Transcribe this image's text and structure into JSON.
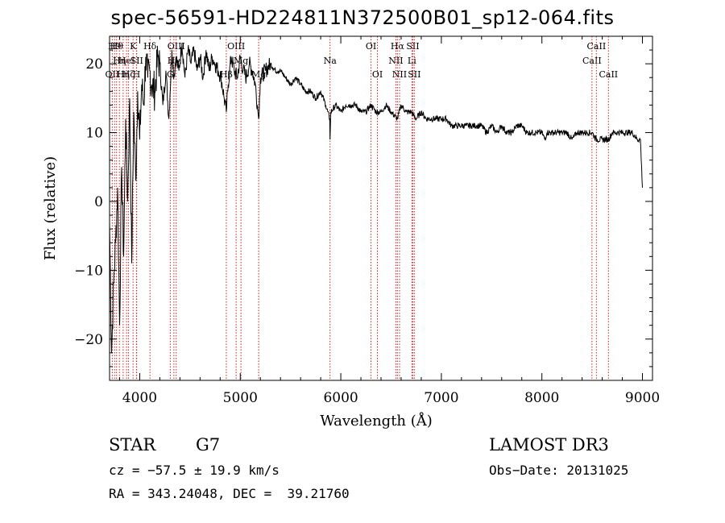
{
  "chart_data": {
    "type": "line",
    "title": "spec-56591-HD224811N372500B01_sp12-064.fits",
    "xlabel": "Wavelength (Å)",
    "ylabel": "Flux (relative)",
    "xlim": [
      3700,
      9100
    ],
    "ylim": [
      -26,
      24
    ],
    "x_ticks": [
      4000,
      5000,
      6000,
      7000,
      8000,
      9000
    ],
    "y_ticks": [
      -20,
      -10,
      0,
      10,
      20
    ],
    "grid": false,
    "series": [
      {
        "name": "spectrum",
        "x": [
          3700,
          3720,
          3740,
          3760,
          3780,
          3800,
          3820,
          3840,
          3860,
          3880,
          3900,
          3920,
          3940,
          3960,
          3980,
          4000,
          4020,
          4040,
          4060,
          4080,
          4100,
          4120,
          4150,
          4180,
          4200,
          4230,
          4260,
          4290,
          4320,
          4340,
          4360,
          4390,
          4420,
          4450,
          4480,
          4510,
          4540,
          4570,
          4600,
          4630,
          4660,
          4690,
          4720,
          4750,
          4780,
          4810,
          4840,
          4861,
          4880,
          4910,
          4940,
          4970,
          5000,
          5030,
          5060,
          5090,
          5120,
          5150,
          5170,
          5183,
          5200,
          5250,
          5300,
          5350,
          5400,
          5450,
          5500,
          5550,
          5600,
          5650,
          5700,
          5750,
          5800,
          5850,
          5890,
          5893,
          5900,
          5950,
          6000,
          6050,
          6100,
          6150,
          6200,
          6250,
          6300,
          6350,
          6400,
          6450,
          6500,
          6563,
          6600,
          6650,
          6700,
          6750,
          6800,
          6850,
          6900,
          6950,
          7000,
          7050,
          7100,
          7150,
          7200,
          7250,
          7300,
          7350,
          7400,
          7450,
          7500,
          7550,
          7600,
          7650,
          7700,
          7750,
          7800,
          7850,
          7900,
          7950,
          8000,
          8030,
          8050,
          8100,
          8150,
          8200,
          8250,
          8300,
          8350,
          8400,
          8450,
          8500,
          8542,
          8600,
          8662,
          8700,
          8750,
          8800,
          8850,
          8900,
          8950,
          8980,
          9000
        ],
        "y": [
          -3,
          -22,
          -12,
          -6,
          2,
          -18,
          5,
          -8,
          12,
          0,
          15,
          -9,
          13,
          3,
          16,
          9,
          17,
          14,
          21,
          18,
          19,
          17,
          16,
          21,
          20,
          14,
          19,
          12,
          22,
          18,
          21,
          19,
          23,
          18,
          22,
          20,
          22,
          19,
          21,
          18,
          22,
          19,
          21,
          20,
          19,
          18,
          15,
          13,
          17,
          21,
          19,
          18,
          21,
          19,
          18,
          20,
          19,
          17,
          14,
          12,
          18,
          19,
          20,
          19,
          19,
          18,
          17,
          18,
          17,
          16,
          16,
          15,
          16,
          14,
          12,
          9,
          13,
          14,
          13,
          14,
          14,
          14,
          13,
          13,
          14,
          13,
          13,
          14,
          13,
          12,
          14,
          13,
          13,
          12,
          13,
          12,
          12,
          12,
          12,
          12,
          11,
          11,
          11,
          11,
          11,
          11,
          11,
          10,
          11,
          10,
          11,
          10,
          10,
          11,
          11,
          10,
          10,
          10,
          10,
          9,
          10,
          10,
          10,
          10,
          10,
          9,
          10,
          10,
          10,
          10,
          9,
          9,
          9,
          10,
          10,
          10,
          10,
          10,
          9,
          9,
          2
        ]
      }
    ],
    "line_labels": [
      {
        "x": 3727,
        "label": "OII",
        "row": 3
      },
      {
        "x": 3750,
        "label": "H9",
        "row": 1
      },
      {
        "x": 3770,
        "label": "Hθ",
        "row": 1
      },
      {
        "x": 3798,
        "label": "Hη",
        "row": 2
      },
      {
        "x": 3835,
        "label": "Hη",
        "row": 3
      },
      {
        "x": 3869,
        "label": "HeI",
        "row": 2
      },
      {
        "x": 3889,
        "label": "Hζ",
        "row": 3
      },
      {
        "x": 3934,
        "label": "K",
        "row": 1
      },
      {
        "x": 3968,
        "label": "H",
        "row": 3
      },
      {
        "x": 3970,
        "label": "SII",
        "row": 2
      },
      {
        "x": 4102,
        "label": "Hδ",
        "row": 1
      },
      {
        "x": 4304,
        "label": "G",
        "row": 3
      },
      {
        "x": 4340,
        "label": "Hγ",
        "row": 2
      },
      {
        "x": 4363,
        "label": "OIII",
        "row": 1
      },
      {
        "x": 4861,
        "label": "Hβ",
        "row": 3
      },
      {
        "x": 4959,
        "label": "OIII",
        "row": 1
      },
      {
        "x": 5007,
        "label": "Mg",
        "row": 2
      },
      {
        "x": 5183,
        "label": "Mg",
        "row": 3
      },
      {
        "x": 5893,
        "label": "Na",
        "row": 2
      },
      {
        "x": 6300,
        "label": "OI",
        "row": 1
      },
      {
        "x": 6364,
        "label": "OI",
        "row": 3
      },
      {
        "x": 6548,
        "label": "NII",
        "row": 2
      },
      {
        "x": 6563,
        "label": "Hα",
        "row": 1
      },
      {
        "x": 6584,
        "label": "NII",
        "row": 3
      },
      {
        "x": 6707,
        "label": "Li",
        "row": 2
      },
      {
        "x": 6716,
        "label": "SII",
        "row": 1
      },
      {
        "x": 6731,
        "label": "SII",
        "row": 3
      },
      {
        "x": 8498,
        "label": "CaII",
        "row": 2
      },
      {
        "x": 8542,
        "label": "CaII",
        "row": 1
      },
      {
        "x": 8662,
        "label": "CaII",
        "row": 3
      }
    ]
  },
  "info": {
    "object_class": "STAR",
    "subclass": "G7",
    "survey": "LAMOST DR3",
    "redshift": "cz = −57.5 ± 19.9 km/s",
    "obs_date": "Obs−Date: 20131025",
    "coords": "RA = 343.24048, DEC =  39.21760"
  },
  "colors": {
    "line_marker": "#cc2222",
    "spectrum": "#000000"
  }
}
